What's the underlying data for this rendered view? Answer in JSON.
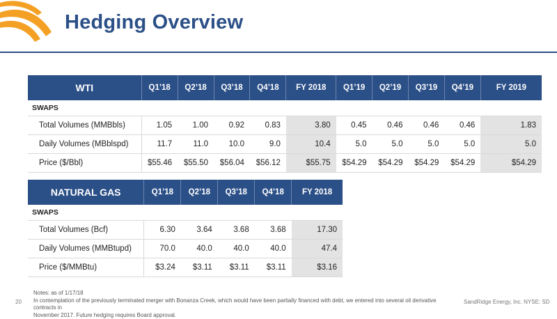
{
  "title": "Hedging Overview",
  "wti": {
    "name": "WTI",
    "columns": [
      "Q1’18",
      "Q2’18",
      "Q3’18",
      "Q4’18",
      "FY 2018",
      "Q1’19",
      "Q2’19",
      "Q3’19",
      "Q4’19",
      "FY 2019"
    ],
    "section": "SWAPS",
    "rows": [
      {
        "label": "Total Volumes (MMBbls)",
        "values": [
          "1.05",
          "1.00",
          "0.92",
          "0.83",
          "3.80",
          "0.45",
          "0.46",
          "0.46",
          "0.46",
          "1.83"
        ]
      },
      {
        "label": "Daily Volumes (MBblspd)",
        "values": [
          "11.7",
          "11.0",
          "10.0",
          "9.0",
          "10.4",
          "5.0",
          "5.0",
          "5.0",
          "5.0",
          "5.0"
        ]
      },
      {
        "label": "Price ($/Bbl)",
        "values": [
          "$55.46",
          "$55.50",
          "$56.04",
          "$56.12",
          "$55.75",
          "$54.29",
          "$54.29",
          "$54.29",
          "$54.29",
          "$54.29"
        ]
      }
    ]
  },
  "gas": {
    "name": "NATURAL GAS",
    "columns": [
      "Q1’18",
      "Q2’18",
      "Q3’18",
      "Q4’18",
      "FY 2018"
    ],
    "section": "SWAPS",
    "rows": [
      {
        "label": "Total Volumes (Bcf)",
        "values": [
          "6.30",
          "3.64",
          "3.68",
          "3.68",
          "17.30"
        ]
      },
      {
        "label": "Daily Volumes (MMBtupd)",
        "values": [
          "70.0",
          "40.0",
          "40.0",
          "40.0",
          "47.4"
        ]
      },
      {
        "label": "Price ($/MMBtu)",
        "values": [
          "$3.24",
          "$3.11",
          "$3.11",
          "$3.11",
          "$3.16"
        ]
      }
    ]
  },
  "footnote": {
    "line1": "Notes: as of 1/17/18",
    "line2": "In contemplation of the previously terminated merger with Bonanza Creek, which would have been partially financed with debt, we entered into several oil derivative contracts in",
    "line3": "November 2017. Future hedging requires Board approval."
  },
  "page_number": "20",
  "company": "SandRidge Energy, Inc. NYSE: SD",
  "colors": {
    "brand": "#2b4f87",
    "accent": "#f4a024",
    "shade": "#e3e3e3"
  }
}
